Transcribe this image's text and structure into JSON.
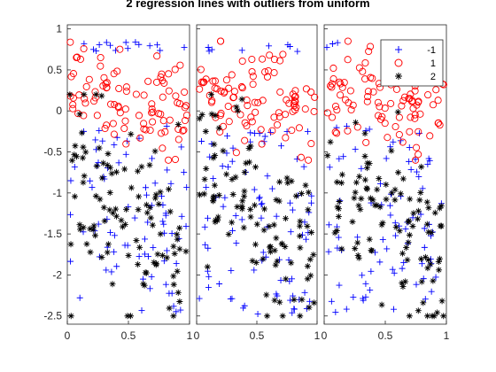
{
  "chart_data": {
    "type": "scatter",
    "title": "2 regression lines with outliers from uniform",
    "xlabel": "",
    "ylabel": "",
    "xlim": [
      0,
      1
    ],
    "ylim": [
      -2.6,
      1.05
    ],
    "xticks": [
      0,
      0.5,
      1
    ],
    "xtick_labels": [
      "0",
      "0.5",
      "1"
    ],
    "yticks": [
      1,
      0.5,
      0,
      -0.5,
      -1,
      -1.5,
      -2,
      -2.5
    ],
    "ytick_labels": [
      "1",
      "0.5",
      "0",
      "-0.5",
      "-1",
      "-1.5",
      "-2",
      "-2.5"
    ],
    "panels": 3,
    "legend": {
      "location": "top-right",
      "panel": 3
    },
    "series": [
      {
        "name": "-1",
        "marker": "plus",
        "color": "#0000ff",
        "description_values": {
          "x_range": [
            0,
            1
          ],
          "y_range": [
            -2.5,
            0.85
          ],
          "distribution": "uniform outliers"
        }
      },
      {
        "name": "1",
        "marker": "circle",
        "color": "#ff0000",
        "description_values": {
          "x_range": [
            0,
            1
          ],
          "y_range": [
            -0.6,
            0.85
          ],
          "trend": "upper regression line, noisy"
        }
      },
      {
        "name": "2",
        "marker": "asterisk",
        "color": "#000000",
        "description_values": {
          "x_range": [
            0,
            1
          ],
          "y_range": [
            -2.5,
            0.2
          ],
          "trend": "lower regression line, noisy"
        }
      }
    ]
  }
}
